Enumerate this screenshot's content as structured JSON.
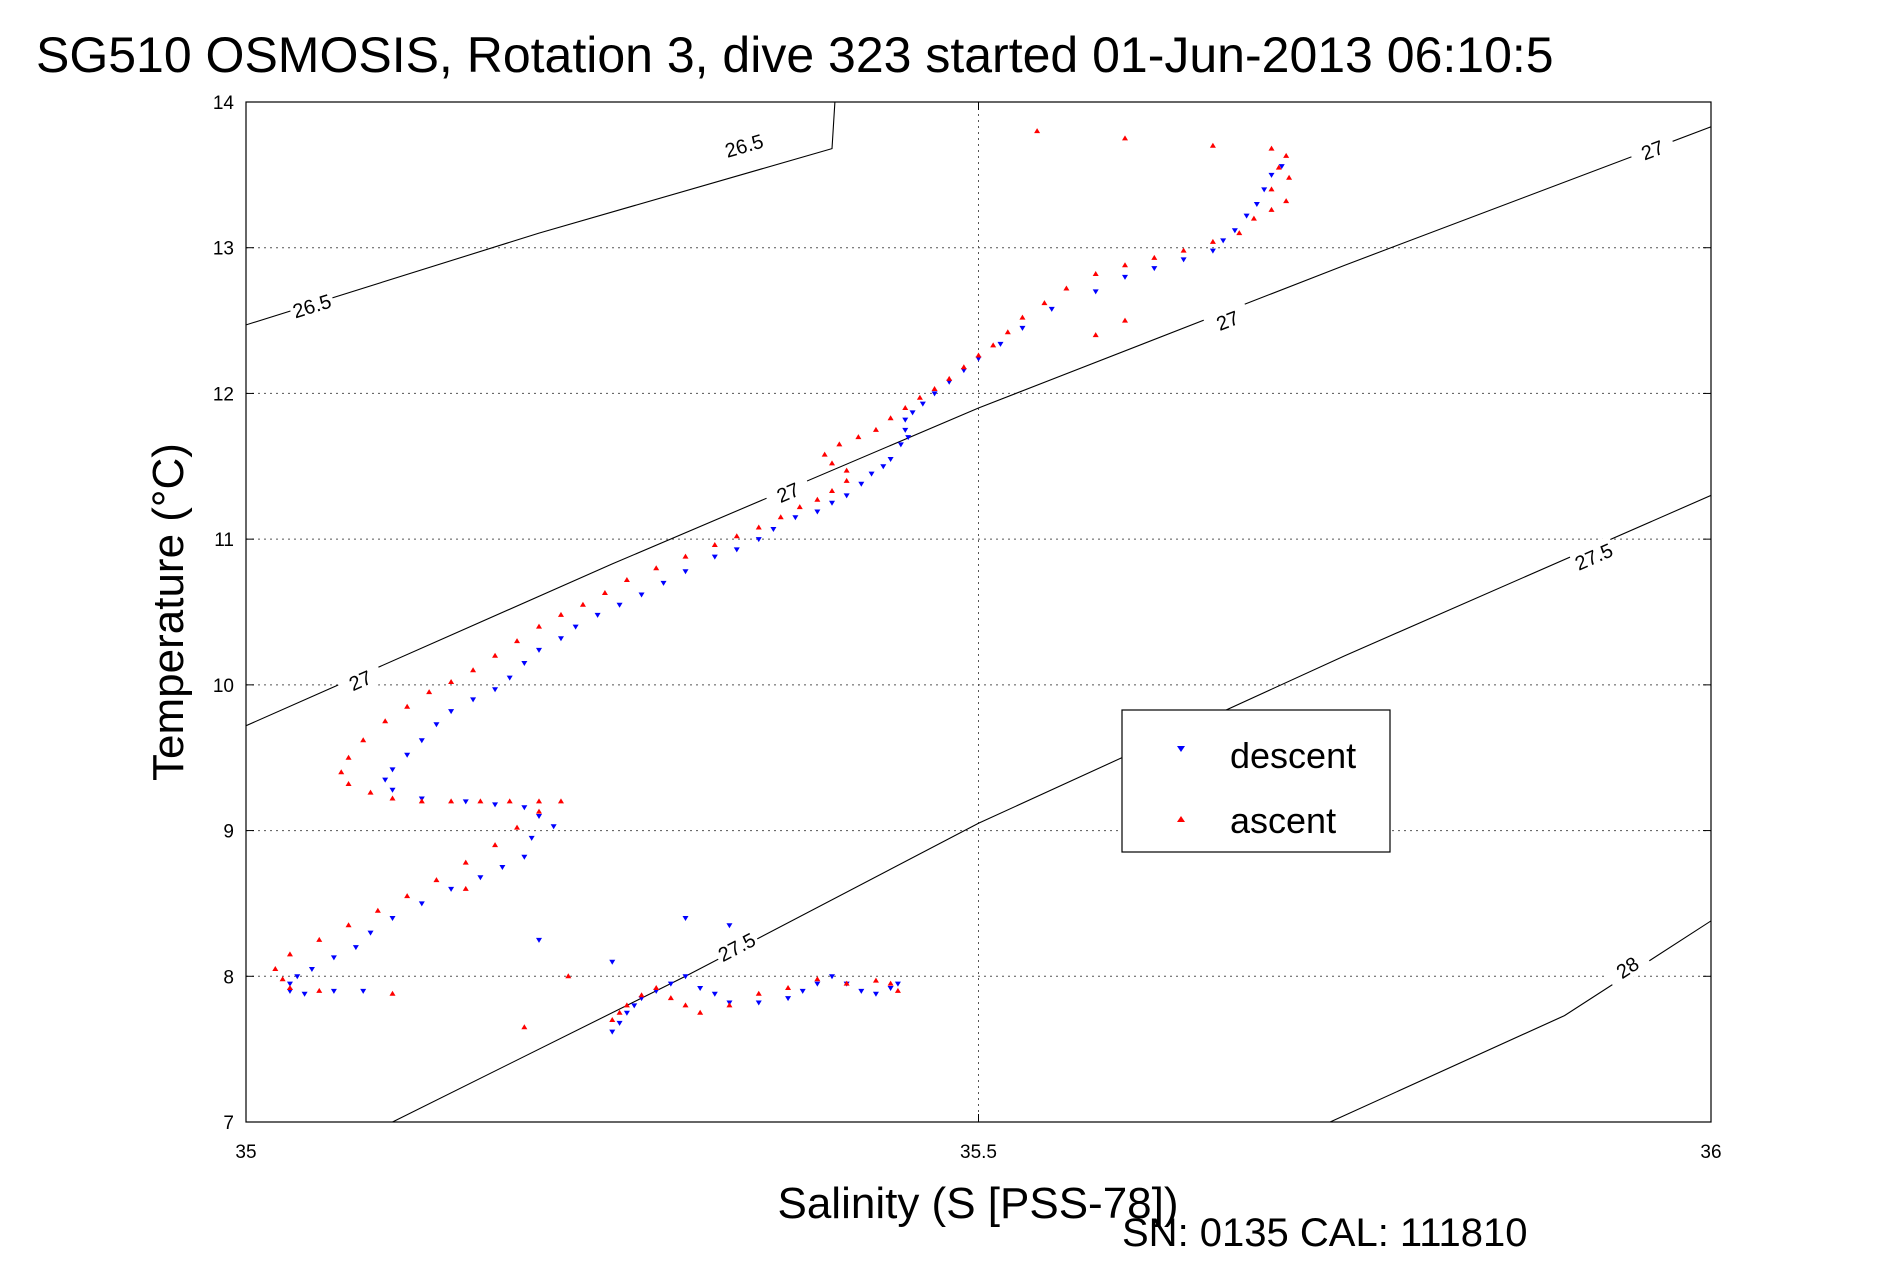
{
  "title": "SG510 OSMOSIS, Rotation 3, dive 323 started 01-Jun-2013 06:10:5",
  "footer": "SN: 0135  CAL: 111810",
  "chart_data": {
    "type": "scatter",
    "xlabel": "Salinity (S [PSS-78])",
    "ylabel": "Temperature (°C)",
    "xlim": [
      35,
      36
    ],
    "ylim": [
      7,
      14
    ],
    "xticks": [
      35,
      35.5,
      36
    ],
    "xtick_labels": [
      "35",
      "35.5",
      "36"
    ],
    "yticks": [
      7,
      8,
      9,
      10,
      11,
      12,
      13,
      14
    ],
    "ytick_labels": [
      "7",
      "8",
      "9",
      "10",
      "11",
      "12",
      "13",
      "14"
    ],
    "grid": true,
    "legend_position": "center-right",
    "isopycnals": [
      {
        "label": "26.5",
        "points": [
          [
            35.0,
            12.47
          ],
          [
            35.2,
            13.1
          ],
          [
            35.4,
            13.68
          ],
          [
            35.402,
            14.0
          ]
        ],
        "label_positions": [
          [
            35.045,
            12.6
          ],
          [
            35.34,
            13.7
          ]
        ]
      },
      {
        "label": "27",
        "points": [
          [
            35.0,
            9.72
          ],
          [
            35.25,
            10.83
          ],
          [
            35.5,
            11.9
          ],
          [
            35.75,
            12.88
          ],
          [
            36.0,
            13.83
          ]
        ],
        "label_positions": [
          [
            35.078,
            10.03
          ],
          [
            35.37,
            11.32
          ],
          [
            35.67,
            12.5
          ],
          [
            35.96,
            13.67
          ]
        ]
      },
      {
        "label": "27.5",
        "points": [
          [
            35.1,
            7.0
          ],
          [
            35.3,
            8.0
          ],
          [
            35.5,
            9.05
          ],
          [
            35.75,
            10.2
          ],
          [
            36.0,
            11.3
          ]
        ],
        "label_positions": [
          [
            35.335,
            8.2
          ],
          [
            35.92,
            10.88
          ]
        ]
      },
      {
        "label": "28",
        "points": [
          [
            35.74,
            7.0
          ],
          [
            35.9,
            7.73
          ],
          [
            36.0,
            8.38
          ]
        ],
        "label_positions": [
          [
            35.943,
            8.06
          ]
        ]
      }
    ],
    "series": [
      {
        "name": "descent",
        "color": "#0000ff",
        "marker": "triangle-down",
        "points": [
          [
            35.707,
            13.56
          ],
          [
            35.7,
            13.5
          ],
          [
            35.695,
            13.4
          ],
          [
            35.69,
            13.3
          ],
          [
            35.683,
            13.22
          ],
          [
            35.675,
            13.12
          ],
          [
            35.667,
            13.05
          ],
          [
            35.66,
            12.98
          ],
          [
            35.64,
            12.92
          ],
          [
            35.62,
            12.86
          ],
          [
            35.6,
            12.8
          ],
          [
            35.58,
            12.7
          ],
          [
            35.55,
            12.58
          ],
          [
            35.53,
            12.45
          ],
          [
            35.515,
            12.34
          ],
          [
            35.5,
            12.24
          ],
          [
            35.49,
            12.16
          ],
          [
            35.48,
            12.08
          ],
          [
            35.47,
            12.0
          ],
          [
            35.462,
            11.93
          ],
          [
            35.455,
            11.87
          ],
          [
            35.45,
            11.82
          ],
          [
            35.45,
            11.75
          ],
          [
            35.452,
            11.7
          ],
          [
            35.447,
            11.65
          ],
          [
            35.44,
            11.55
          ],
          [
            35.435,
            11.5
          ],
          [
            35.427,
            11.45
          ],
          [
            35.42,
            11.38
          ],
          [
            35.41,
            11.3
          ],
          [
            35.4,
            11.25
          ],
          [
            35.39,
            11.19
          ],
          [
            35.375,
            11.15
          ],
          [
            35.36,
            11.07
          ],
          [
            35.35,
            11.0
          ],
          [
            35.335,
            10.93
          ],
          [
            35.32,
            10.88
          ],
          [
            35.3,
            10.78
          ],
          [
            35.285,
            10.7
          ],
          [
            35.27,
            10.62
          ],
          [
            35.255,
            10.55
          ],
          [
            35.24,
            10.48
          ],
          [
            35.225,
            10.4
          ],
          [
            35.215,
            10.32
          ],
          [
            35.2,
            10.24
          ],
          [
            35.19,
            10.15
          ],
          [
            35.18,
            10.05
          ],
          [
            35.17,
            9.97
          ],
          [
            35.155,
            9.9
          ],
          [
            35.14,
            9.82
          ],
          [
            35.13,
            9.73
          ],
          [
            35.12,
            9.62
          ],
          [
            35.11,
            9.52
          ],
          [
            35.1,
            9.42
          ],
          [
            35.095,
            9.35
          ],
          [
            35.1,
            9.28
          ],
          [
            35.12,
            9.22
          ],
          [
            35.15,
            9.2
          ],
          [
            35.17,
            9.18
          ],
          [
            35.19,
            9.16
          ],
          [
            35.2,
            9.1
          ],
          [
            35.21,
            9.03
          ],
          [
            35.195,
            8.95
          ],
          [
            35.19,
            8.82
          ],
          [
            35.175,
            8.75
          ],
          [
            35.16,
            8.68
          ],
          [
            35.14,
            8.6
          ],
          [
            35.12,
            8.5
          ],
          [
            35.1,
            8.4
          ],
          [
            35.085,
            8.3
          ],
          [
            35.075,
            8.2
          ],
          [
            35.06,
            8.13
          ],
          [
            35.045,
            8.05
          ],
          [
            35.035,
            8.0
          ],
          [
            35.03,
            7.95
          ],
          [
            35.03,
            7.9
          ],
          [
            35.04,
            7.88
          ],
          [
            35.06,
            7.9
          ],
          [
            35.08,
            7.9
          ],
          [
            35.25,
            7.62
          ],
          [
            35.255,
            7.68
          ],
          [
            35.26,
            7.75
          ],
          [
            35.265,
            7.8
          ],
          [
            35.27,
            7.85
          ],
          [
            35.28,
            7.9
          ],
          [
            35.29,
            7.95
          ],
          [
            35.3,
            8.0
          ],
          [
            35.31,
            7.92
          ],
          [
            35.32,
            7.88
          ],
          [
            35.33,
            7.82
          ],
          [
            35.35,
            7.82
          ],
          [
            35.37,
            7.85
          ],
          [
            35.38,
            7.9
          ],
          [
            35.39,
            7.95
          ],
          [
            35.4,
            8.0
          ],
          [
            35.41,
            7.95
          ],
          [
            35.42,
            7.9
          ],
          [
            35.43,
            7.88
          ],
          [
            35.44,
            7.92
          ],
          [
            35.445,
            7.95
          ],
          [
            35.3,
            8.4
          ],
          [
            35.33,
            8.35
          ],
          [
            35.25,
            8.1
          ],
          [
            35.2,
            8.25
          ]
        ]
      },
      {
        "name": "ascent",
        "color": "#ff0000",
        "marker": "triangle-up",
        "points": [
          [
            35.7,
            13.68
          ],
          [
            35.71,
            13.63
          ],
          [
            35.705,
            13.55
          ],
          [
            35.712,
            13.48
          ],
          [
            35.7,
            13.4
          ],
          [
            35.71,
            13.32
          ],
          [
            35.7,
            13.26
          ],
          [
            35.688,
            13.2
          ],
          [
            35.678,
            13.1
          ],
          [
            35.66,
            13.04
          ],
          [
            35.64,
            12.98
          ],
          [
            35.62,
            12.93
          ],
          [
            35.6,
            12.88
          ],
          [
            35.58,
            12.82
          ],
          [
            35.56,
            12.72
          ],
          [
            35.545,
            12.62
          ],
          [
            35.53,
            12.52
          ],
          [
            35.52,
            12.42
          ],
          [
            35.51,
            12.33
          ],
          [
            35.5,
            12.26
          ],
          [
            35.49,
            12.18
          ],
          [
            35.48,
            12.1
          ],
          [
            35.47,
            12.03
          ],
          [
            35.46,
            11.97
          ],
          [
            35.45,
            11.9
          ],
          [
            35.44,
            11.83
          ],
          [
            35.43,
            11.75
          ],
          [
            35.418,
            11.7
          ],
          [
            35.405,
            11.65
          ],
          [
            35.395,
            11.58
          ],
          [
            35.4,
            11.52
          ],
          [
            35.41,
            11.47
          ],
          [
            35.41,
            11.4
          ],
          [
            35.4,
            11.33
          ],
          [
            35.39,
            11.27
          ],
          [
            35.378,
            11.22
          ],
          [
            35.365,
            11.15
          ],
          [
            35.35,
            11.08
          ],
          [
            35.335,
            11.02
          ],
          [
            35.32,
            10.96
          ],
          [
            35.3,
            10.88
          ],
          [
            35.28,
            10.8
          ],
          [
            35.26,
            10.72
          ],
          [
            35.245,
            10.63
          ],
          [
            35.23,
            10.55
          ],
          [
            35.215,
            10.48
          ],
          [
            35.2,
            10.4
          ],
          [
            35.185,
            10.3
          ],
          [
            35.17,
            10.2
          ],
          [
            35.155,
            10.1
          ],
          [
            35.14,
            10.02
          ],
          [
            35.125,
            9.95
          ],
          [
            35.11,
            9.85
          ],
          [
            35.095,
            9.75
          ],
          [
            35.08,
            9.62
          ],
          [
            35.07,
            9.5
          ],
          [
            35.065,
            9.4
          ],
          [
            35.07,
            9.32
          ],
          [
            35.085,
            9.26
          ],
          [
            35.1,
            9.22
          ],
          [
            35.12,
            9.2
          ],
          [
            35.14,
            9.2
          ],
          [
            35.16,
            9.2
          ],
          [
            35.18,
            9.2
          ],
          [
            35.2,
            9.2
          ],
          [
            35.215,
            9.2
          ],
          [
            35.2,
            9.13
          ],
          [
            35.185,
            9.02
          ],
          [
            35.17,
            8.9
          ],
          [
            35.15,
            8.78
          ],
          [
            35.13,
            8.66
          ],
          [
            35.11,
            8.55
          ],
          [
            35.09,
            8.45
          ],
          [
            35.07,
            8.35
          ],
          [
            35.05,
            8.25
          ],
          [
            35.03,
            8.15
          ],
          [
            35.02,
            8.05
          ],
          [
            35.025,
            7.98
          ],
          [
            35.03,
            7.92
          ],
          [
            35.05,
            7.9
          ],
          [
            35.1,
            7.88
          ],
          [
            35.25,
            7.7
          ],
          [
            35.255,
            7.75
          ],
          [
            35.26,
            7.8
          ],
          [
            35.27,
            7.87
          ],
          [
            35.28,
            7.92
          ],
          [
            35.29,
            7.85
          ],
          [
            35.3,
            7.8
          ],
          [
            35.31,
            7.75
          ],
          [
            35.33,
            7.8
          ],
          [
            35.35,
            7.88
          ],
          [
            35.37,
            7.92
          ],
          [
            35.39,
            7.98
          ],
          [
            35.41,
            7.95
          ],
          [
            35.43,
            7.97
          ],
          [
            35.44,
            7.95
          ],
          [
            35.445,
            7.9
          ],
          [
            35.54,
            13.8
          ],
          [
            35.6,
            13.75
          ],
          [
            35.66,
            13.7
          ],
          [
            35.58,
            12.4
          ],
          [
            35.6,
            12.5
          ],
          [
            35.19,
            7.65
          ],
          [
            35.22,
            8.0
          ],
          [
            35.15,
            8.6
          ]
        ]
      }
    ]
  }
}
